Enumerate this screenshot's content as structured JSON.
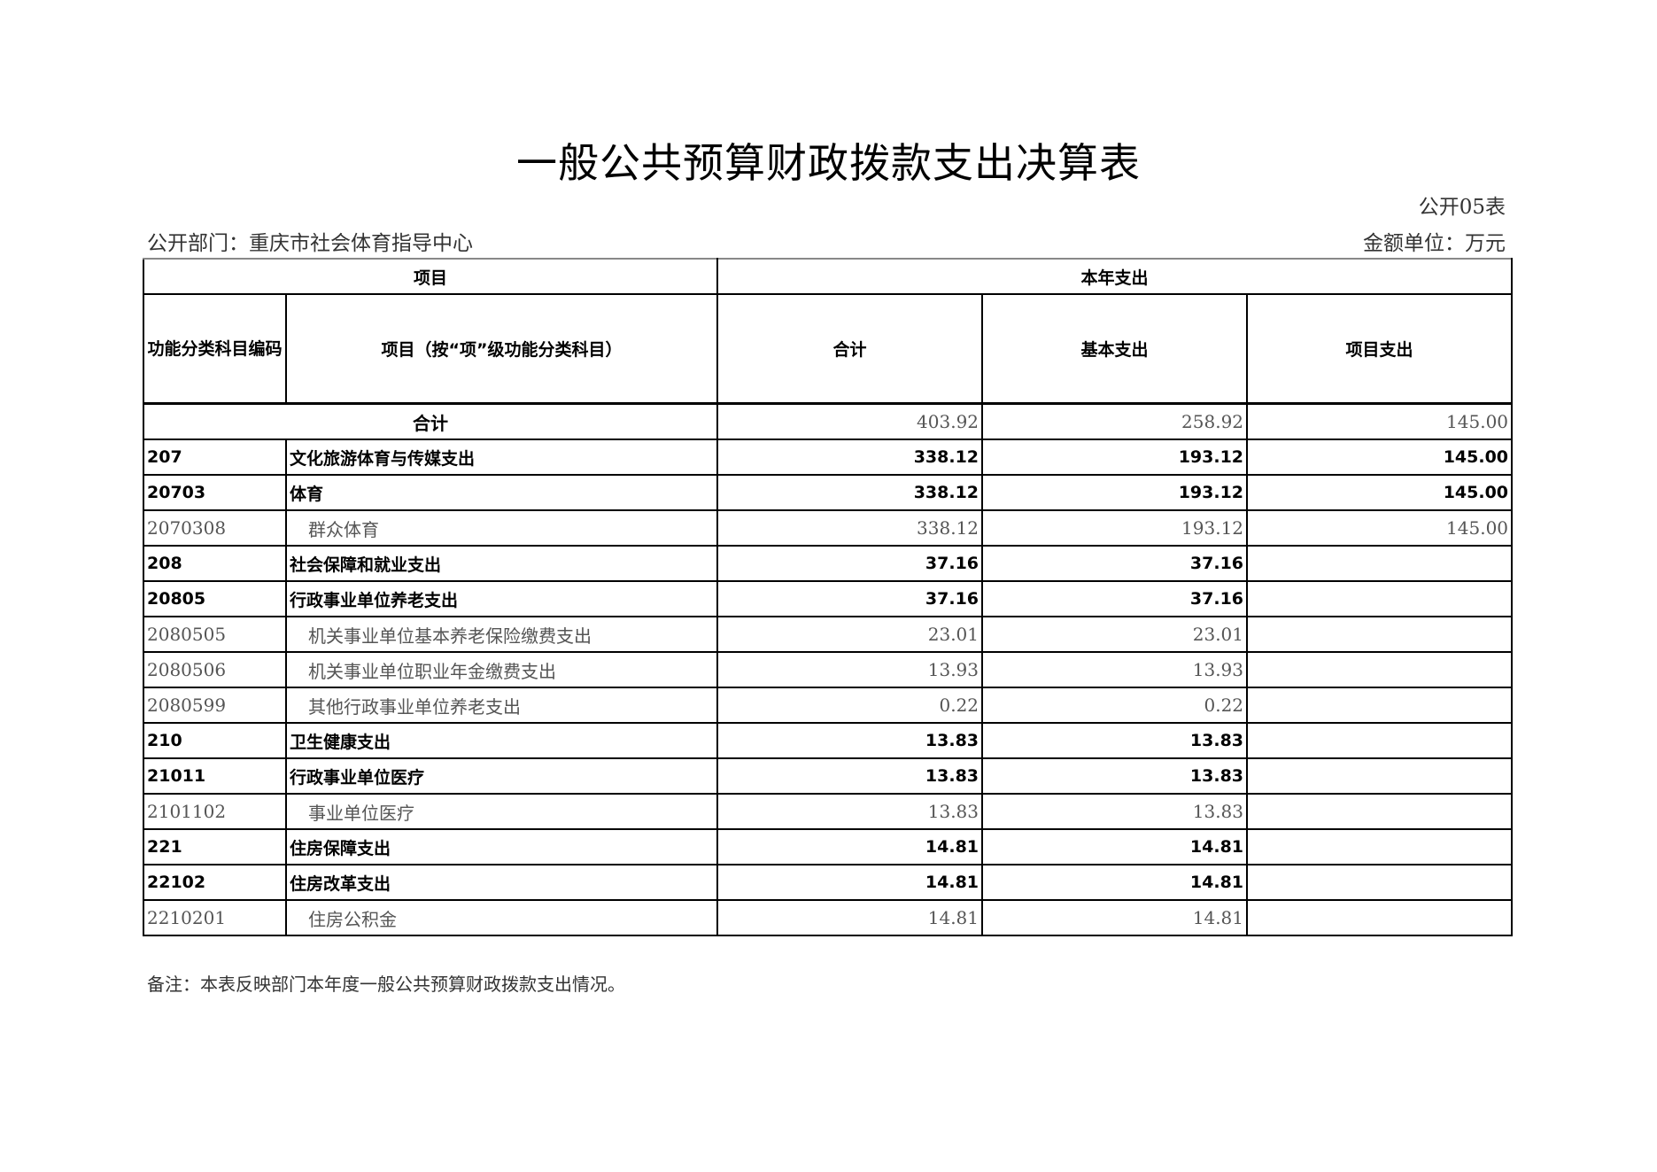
{
  "title": "一般公共预算财政拨款支出决算表",
  "table_no": "公开05表",
  "department": "公开部门：重庆市社会体育指导中心",
  "unit": "金额单位：万元",
  "headers": {
    "project": "项目",
    "current_year": "本年支出",
    "code": "功能分类科目编码",
    "name": "项目（按“项”级功能分类科目）",
    "total": "合计",
    "basic": "基本支出",
    "project_exp": "项目支出"
  },
  "total_row": {
    "label": "合计",
    "total": "403.92",
    "basic": "258.92",
    "project": "145.00"
  },
  "rows": [
    {
      "code": "207",
      "name": "文化旅游体育与传媒支出",
      "total": "338.12",
      "basic": "193.12",
      "project": "145.00",
      "bold": true
    },
    {
      "code": "20703",
      "name": "体育",
      "total": "338.12",
      "basic": "193.12",
      "project": "145.00",
      "bold": true
    },
    {
      "code": "2070308",
      "name": "群众体育",
      "total": "338.12",
      "basic": "193.12",
      "project": "145.00",
      "bold": false
    },
    {
      "code": "208",
      "name": "社会保障和就业支出",
      "total": "37.16",
      "basic": "37.16",
      "project": "",
      "bold": true
    },
    {
      "code": "20805",
      "name": "行政事业单位养老支出",
      "total": "37.16",
      "basic": "37.16",
      "project": "",
      "bold": true
    },
    {
      "code": "2080505",
      "name": "机关事业单位基本养老保险缴费支出",
      "total": "23.01",
      "basic": "23.01",
      "project": "",
      "bold": false
    },
    {
      "code": "2080506",
      "name": "机关事业单位职业年金缴费支出",
      "total": "13.93",
      "basic": "13.93",
      "project": "",
      "bold": false
    },
    {
      "code": "2080599",
      "name": "其他行政事业单位养老支出",
      "total": "0.22",
      "basic": "0.22",
      "project": "",
      "bold": false
    },
    {
      "code": "210",
      "name": "卫生健康支出",
      "total": "13.83",
      "basic": "13.83",
      "project": "",
      "bold": true
    },
    {
      "code": "21011",
      "name": "行政事业单位医疗",
      "total": "13.83",
      "basic": "13.83",
      "project": "",
      "bold": true
    },
    {
      "code": "2101102",
      "name": "事业单位医疗",
      "total": "13.83",
      "basic": "13.83",
      "project": "",
      "bold": false
    },
    {
      "code": "221",
      "name": "住房保障支出",
      "total": "14.81",
      "basic": "14.81",
      "project": "",
      "bold": true
    },
    {
      "code": "22102",
      "name": "住房改革支出",
      "total": "14.81",
      "basic": "14.81",
      "project": "",
      "bold": true
    },
    {
      "code": "2210201",
      "name": "住房公积金",
      "total": "14.81",
      "basic": "14.81",
      "project": "",
      "bold": false
    }
  ],
  "note": "备注：本表反映部门本年度一般公共预算财政拨款支出情况。"
}
